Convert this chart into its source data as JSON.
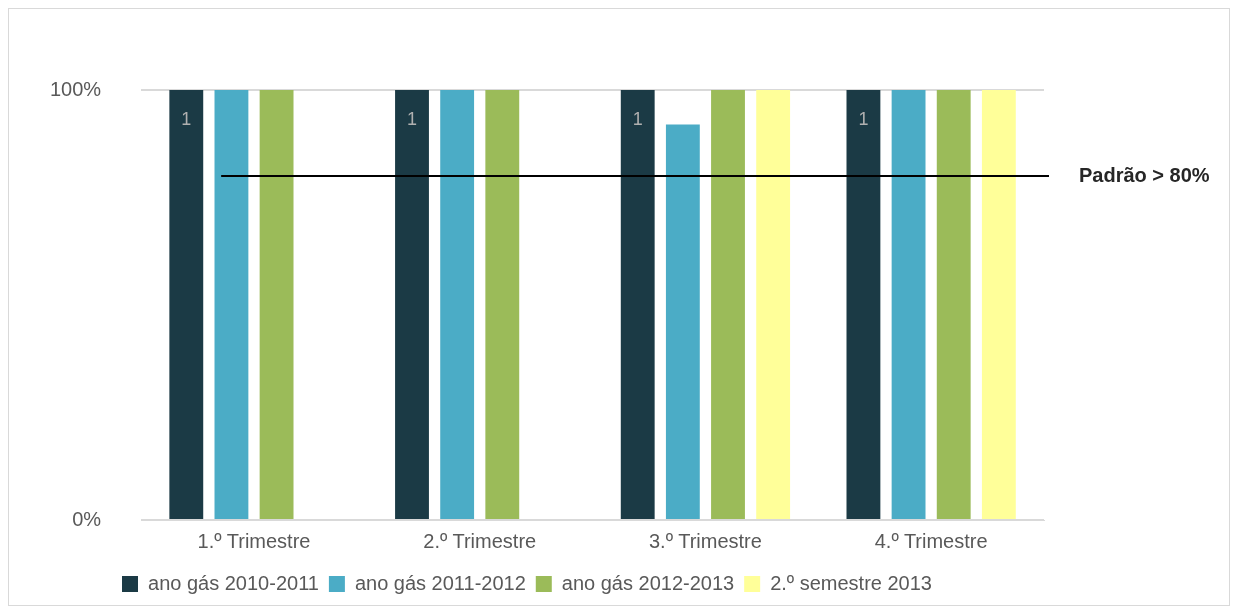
{
  "chart_data": {
    "type": "bar",
    "categories": [
      "1.º Trimestre",
      "2.º Trimestre",
      "3.º Trimestre",
      "4.º Trimestre"
    ],
    "series": [
      {
        "name": "ano gás 2010-2011",
        "color": "#1b3a45",
        "values": [
          1,
          1,
          1,
          1
        ],
        "value_labels": [
          "1",
          "1",
          "1",
          "1"
        ]
      },
      {
        "name": "ano gás 2011-2012",
        "color": "#4bacc6",
        "values": [
          1,
          1,
          0.92,
          1
        ]
      },
      {
        "name": "ano gás 2012-2013",
        "color": "#9bbb59",
        "values": [
          1,
          1,
          1,
          1
        ]
      },
      {
        "name": "2.º semestre 2013",
        "color": "#ffff99",
        "values": [
          null,
          null,
          1,
          1
        ]
      }
    ],
    "ylim": [
      0,
      1
    ],
    "yticks": [
      {
        "value": 0,
        "label": "0%"
      },
      {
        "value": 1,
        "label": "100%"
      }
    ],
    "grid": "y",
    "legend": "bottom",
    "ref_lines": [
      {
        "axis": "y",
        "value": 0.8,
        "label": "Padrão > 80%",
        "color": "#000000"
      }
    ]
  }
}
